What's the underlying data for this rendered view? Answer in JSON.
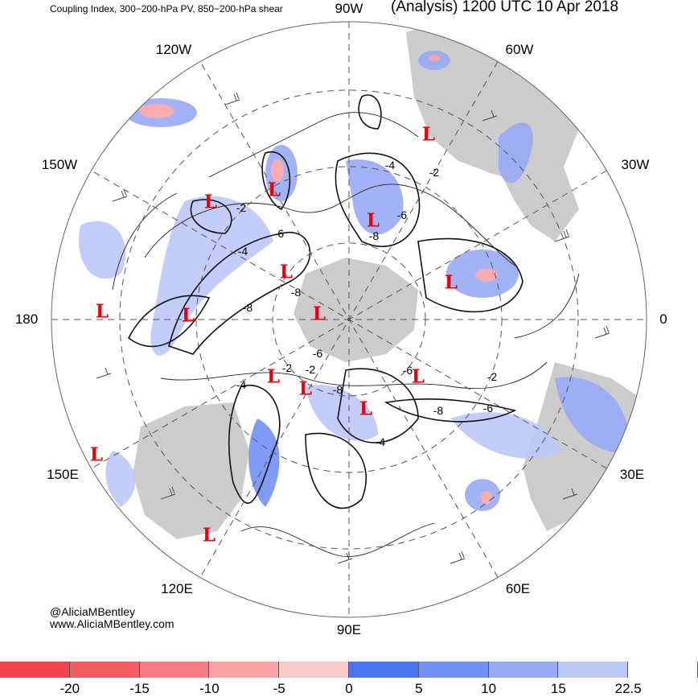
{
  "header": {
    "left_title": "Coupling Index, 300−200-hPa PV, 850−200-hPa shear",
    "right_title": "(Analysis) 1200 UTC 10 Apr 2018"
  },
  "longitude_labels": [
    "90W",
    "60W",
    "30W",
    "0",
    "30E",
    "60E",
    "90E",
    "120E",
    "150E",
    "180",
    "150W",
    "120W"
  ],
  "low_marker": "L",
  "contour_labels": [
    "-2",
    "-4",
    "-6",
    "-8"
  ],
  "credits": [
    "@AliciaMBentley",
    "www.AliciaMBentley.com"
  ],
  "colorbar": {
    "colors": [
      "#f2434b",
      "#f45b61",
      "#f57e83",
      "#f9a3a7",
      "#fcc8ca",
      "#4a74f0",
      "#7391f4",
      "#97abf5",
      "#bcc8f8",
      "#ffffff"
    ],
    "labels": [
      "-20",
      "-15",
      "-10",
      "-5",
      "0",
      "5",
      "10",
      "15",
      "22.5"
    ]
  },
  "colors": {
    "land": "#cccccc",
    "shading_light": "#bcc8f8",
    "shading_mid": "#97abf5",
    "shading_dark": "#4a74f0",
    "low_marker": "#e8000b"
  }
}
